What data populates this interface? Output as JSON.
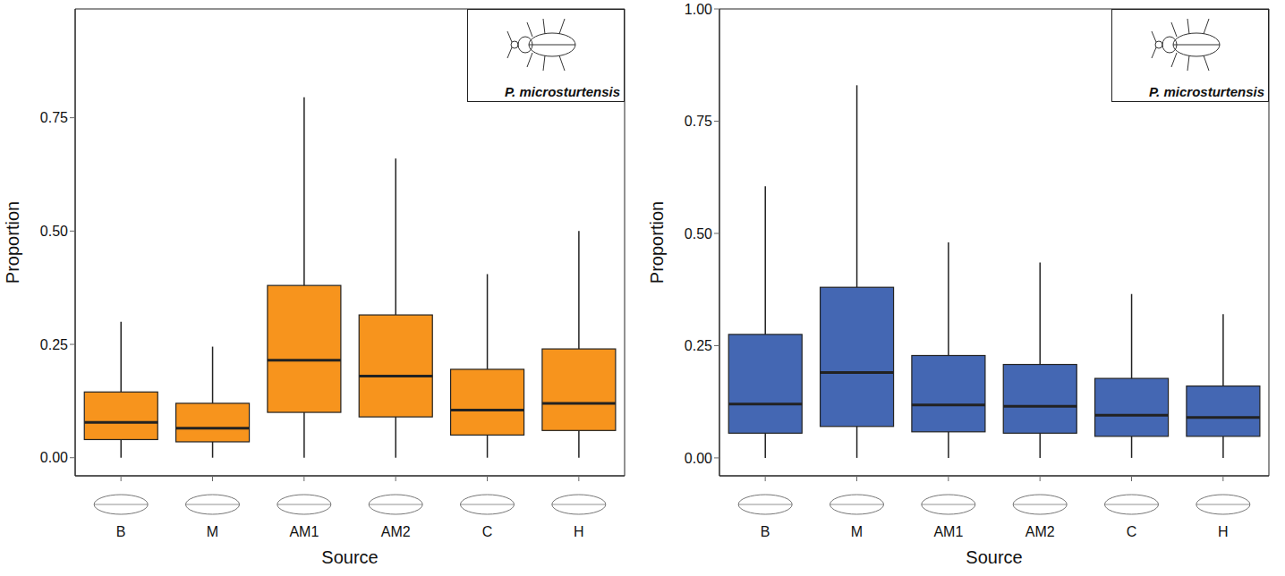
{
  "chart_data": [
    {
      "type": "box",
      "title": "P. microsturtensis",
      "x_label": "Source",
      "y_label": "Proportion",
      "color": "#f7941d",
      "categories": [
        "B",
        "M",
        "AM1",
        "AM2",
        "C",
        "H"
      ],
      "boxes": [
        {
          "min": 0,
          "q1": 0.04,
          "median": 0.078,
          "q3": 0.145,
          "max": 0.3
        },
        {
          "min": 0,
          "q1": 0.035,
          "median": 0.065,
          "q3": 0.12,
          "max": 0.245
        },
        {
          "min": 0,
          "q1": 0.1,
          "median": 0.215,
          "q3": 0.38,
          "max": 0.795
        },
        {
          "min": 0,
          "q1": 0.09,
          "median": 0.18,
          "q3": 0.315,
          "max": 0.66
        },
        {
          "min": 0,
          "q1": 0.05,
          "median": 0.105,
          "q3": 0.195,
          "max": 0.405
        },
        {
          "min": 0,
          "q1": 0.06,
          "median": 0.12,
          "q3": 0.24,
          "max": 0.5
        }
      ],
      "ylim": [
        -0.04,
        0.99
      ],
      "yticks": [
        {
          "value": 0,
          "label": "0.00"
        },
        {
          "value": 0.25,
          "label": "0.25"
        },
        {
          "value": 0.5,
          "label": "0.50"
        },
        {
          "value": 0.75,
          "label": "0.75"
        }
      ],
      "grid": false
    },
    {
      "type": "box",
      "title": "P. microsturtensis",
      "x_label": "Source",
      "y_label": "Proportion",
      "color": "#4467b3",
      "categories": [
        "B",
        "M",
        "AM1",
        "AM2",
        "C",
        "H"
      ],
      "boxes": [
        {
          "min": 0,
          "q1": 0.055,
          "median": 0.12,
          "q3": 0.275,
          "max": 0.605
        },
        {
          "min": 0,
          "q1": 0.07,
          "median": 0.19,
          "q3": 0.38,
          "max": 0.83
        },
        {
          "min": 0,
          "q1": 0.058,
          "median": 0.118,
          "q3": 0.228,
          "max": 0.48
        },
        {
          "min": 0,
          "q1": 0.055,
          "median": 0.115,
          "q3": 0.208,
          "max": 0.435
        },
        {
          "min": 0,
          "q1": 0.048,
          "median": 0.095,
          "q3": 0.177,
          "max": 0.365
        },
        {
          "min": 0,
          "q1": 0.048,
          "median": 0.09,
          "q3": 0.16,
          "max": 0.32
        }
      ],
      "ylim": [
        -0.04,
        1.0
      ],
      "yticks": [
        {
          "value": 0,
          "label": "0.00"
        },
        {
          "value": 0.25,
          "label": "0.25"
        },
        {
          "value": 0.5,
          "label": "0.50"
        },
        {
          "value": 0.75,
          "label": "0.75"
        },
        {
          "value": 1,
          "label": "1.00"
        }
      ],
      "grid": false
    }
  ]
}
